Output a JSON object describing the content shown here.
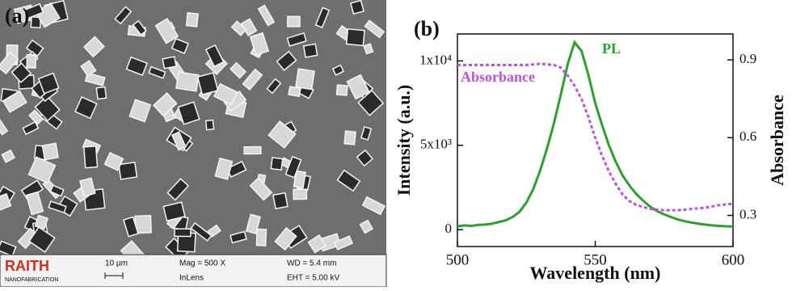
{
  "panel_a": {
    "label": "(a)",
    "brand": "RAITH",
    "brand_sub": "NANOFABRICATION",
    "scale_bar": "10 µm",
    "mag": "Mag =   500 X",
    "detector": "InLens",
    "wd": "WD =  5.4 mm",
    "eht": "EHT = 5.00 kV"
  },
  "chart_data": {
    "type": "line",
    "panel_label": "(b)",
    "x_label": "Wavelength (nm)",
    "y_label": "Intensity (a.u.)",
    "y2_label": "Absorbance",
    "xlim": [
      500,
      600
    ],
    "xticks": [
      500,
      550,
      600
    ],
    "ylim": [
      -1000,
      11600
    ],
    "yticks": [
      0,
      {
        "value": 5000,
        "label": "5x10³"
      },
      {
        "value": 10000,
        "label": "1x10⁴"
      }
    ],
    "y2lim": [
      0.18,
      1.0
    ],
    "y2ticks": [
      0.3,
      0.6,
      0.9
    ],
    "series": [
      {
        "name": "PL",
        "color": "#2ca02c",
        "x": [
          500,
          502.5,
          505,
          507.5,
          510,
          512.5,
          515,
          517.5,
          520,
          522.5,
          525,
          527.5,
          530,
          532.5,
          535,
          537.5,
          540,
          542.5,
          545,
          547.5,
          550,
          552.5,
          555,
          557.5,
          560,
          562.5,
          565,
          567.5,
          570,
          572.5,
          575,
          577.5,
          580,
          582.5,
          585,
          587.5,
          590,
          592.5,
          595,
          597.5,
          600
        ],
        "values": [
          200,
          250,
          220,
          280,
          300,
          350,
          450,
          550,
          750,
          1050,
          1600,
          2400,
          3500,
          4800,
          6300,
          8000,
          9800,
          11100,
          10600,
          9200,
          7500,
          6200,
          5000,
          4000,
          3200,
          2600,
          2100,
          1700,
          1350,
          1100,
          900,
          750,
          600,
          500,
          420,
          350,
          300,
          250,
          220,
          200,
          180
        ]
      },
      {
        "name": "Absorbance",
        "color": "#c050e0",
        "axis": "y2",
        "x": [
          500,
          505,
          510,
          515,
          520,
          525,
          530,
          535,
          537.5,
          540,
          542.5,
          545,
          547.5,
          550,
          552.5,
          555,
          557.5,
          560,
          562.5,
          565,
          570,
          575,
          580,
          585,
          590,
          595,
          600
        ],
        "values": [
          0.88,
          0.88,
          0.88,
          0.88,
          0.88,
          0.88,
          0.885,
          0.88,
          0.87,
          0.84,
          0.8,
          0.75,
          0.68,
          0.6,
          0.53,
          0.47,
          0.42,
          0.38,
          0.355,
          0.34,
          0.325,
          0.32,
          0.32,
          0.325,
          0.33,
          0.34,
          0.345
        ]
      }
    ]
  }
}
